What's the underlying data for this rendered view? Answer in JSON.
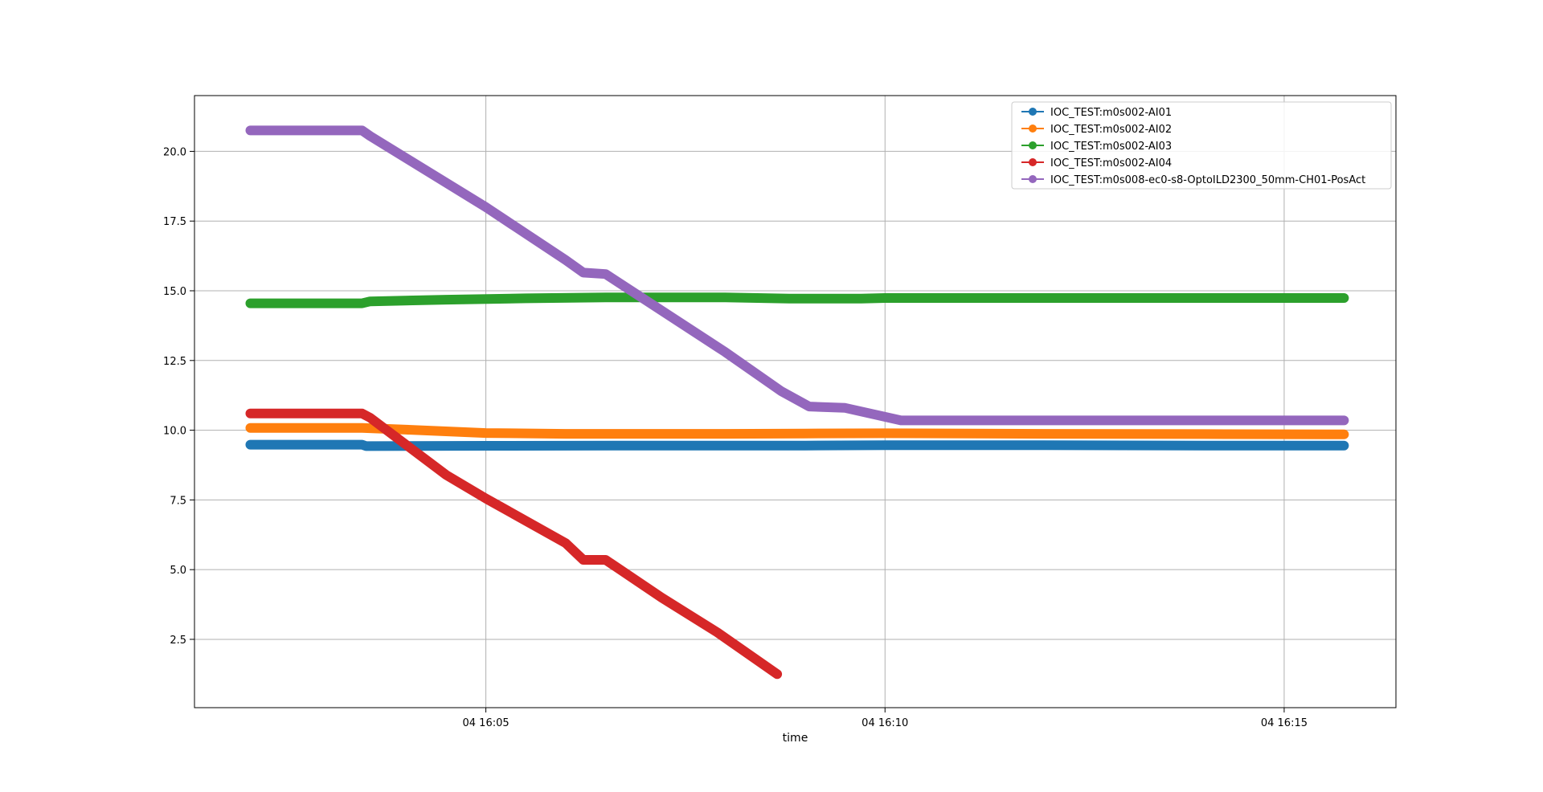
{
  "chart_data": {
    "type": "line",
    "title": "",
    "xlabel": "time",
    "ylabel": "",
    "x_axis_type": "time",
    "x_unit": "minutes past 16:00 on day 04",
    "xlim": [
      1.35,
      16.4
    ],
    "ylim": [
      0.05,
      22.0
    ],
    "x_ticks": [
      {
        "value": 5,
        "label": "04 16:05"
      },
      {
        "value": 10,
        "label": "04 16:10"
      },
      {
        "value": 15,
        "label": "04 16:15"
      }
    ],
    "y_ticks": [
      {
        "value": 2.5,
        "label": "2.5"
      },
      {
        "value": 5.0,
        "label": "5.0"
      },
      {
        "value": 7.5,
        "label": "7.5"
      },
      {
        "value": 10.0,
        "label": "10.0"
      },
      {
        "value": 12.5,
        "label": "12.5"
      },
      {
        "value": 15.0,
        "label": "15.0"
      },
      {
        "value": 17.5,
        "label": "17.5"
      },
      {
        "value": 20.0,
        "label": "20.0"
      }
    ],
    "grid": true,
    "legend_position": "top-right",
    "series": [
      {
        "name": "IOC_TEST:m0s002-AI01",
        "color": "#1f77b4",
        "x": [
          2.05,
          3.45,
          3.5,
          5.0,
          7.0,
          9.0,
          10.0,
          12.0,
          14.0,
          15.75
        ],
        "y": [
          9.48,
          9.48,
          9.43,
          9.44,
          9.45,
          9.45,
          9.46,
          9.46,
          9.45,
          9.45
        ]
      },
      {
        "name": "IOC_TEST:m0s002-AI02",
        "color": "#ff7f0e",
        "x": [
          2.05,
          3.45,
          4.0,
          5.0,
          6.0,
          8.0,
          9.0,
          10.0,
          12.0,
          14.0,
          15.75
        ],
        "y": [
          10.08,
          10.08,
          10.02,
          9.9,
          9.87,
          9.87,
          9.88,
          9.89,
          9.87,
          9.86,
          9.85
        ]
      },
      {
        "name": "IOC_TEST:m0s002-AI03",
        "color": "#2ca02c",
        "x": [
          2.05,
          3.45,
          3.55,
          4.5,
          5.5,
          6.5,
          8.0,
          8.8,
          9.7,
          10.0,
          12.0,
          14.0,
          15.75
        ],
        "y": [
          14.55,
          14.55,
          14.62,
          14.68,
          14.73,
          14.76,
          14.76,
          14.72,
          14.72,
          14.74,
          14.74,
          14.74,
          14.74
        ]
      },
      {
        "name": "IOC_TEST:m0s002-AI04",
        "color": "#d62728",
        "x": [
          2.05,
          3.45,
          3.55,
          4.5,
          5.0,
          6.0,
          6.22,
          6.5,
          7.2,
          7.9,
          8.65
        ],
        "y": [
          10.6,
          10.6,
          10.45,
          8.4,
          7.55,
          5.95,
          5.35,
          5.35,
          4.0,
          2.75,
          1.25
        ]
      },
      {
        "name": "IOC_TEST:m0s008-ec0-s8-OptoILD2300_50mm-CH01-PosAct",
        "color": "#9467bd",
        "x": [
          2.05,
          3.45,
          3.55,
          5.0,
          6.0,
          6.22,
          6.5,
          8.0,
          8.7,
          9.05,
          9.5,
          10.2,
          12.0,
          14.0,
          15.75
        ],
        "y": [
          20.75,
          20.75,
          20.55,
          18.0,
          16.1,
          15.65,
          15.6,
          12.8,
          11.4,
          10.85,
          10.8,
          10.35,
          10.35,
          10.35,
          10.35
        ]
      }
    ]
  }
}
